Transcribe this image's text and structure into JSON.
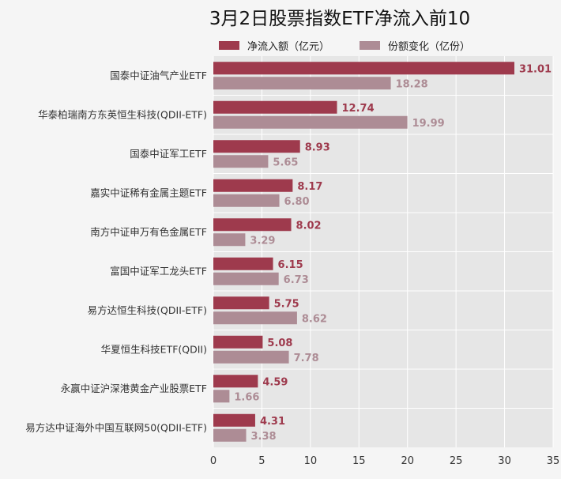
{
  "chart_data": {
    "type": "bar",
    "orientation": "horizontal",
    "title": "3月2日股票指数ETF净流入前10",
    "categories": [
      "国泰中证油气产业ETF",
      "华泰柏瑞南方东英恒生科技(QDII-ETF)",
      "国泰中证军工ETF",
      "嘉实中证稀有金属主题ETF",
      "南方中证申万有色金属ETF",
      "富国中证军工龙头ETF",
      "易方达恒生科技(QDII-ETF)",
      "华夏恒生科技ETF(QDII)",
      "永赢中证沪深港黄金产业股票ETF",
      "易方达中证海外中国互联网50(QDII-ETF)"
    ],
    "series": [
      {
        "name": "净流入额（亿元）",
        "color": "#9e3a4d",
        "values": [
          31.01,
          12.74,
          8.93,
          8.17,
          8.02,
          6.15,
          5.75,
          5.08,
          4.59,
          4.31
        ],
        "labels": [
          "31.01",
          "12.74",
          "8.93",
          "8.17",
          "8.02",
          "6.15",
          "5.75",
          "5.08",
          "4.59",
          "4.31"
        ]
      },
      {
        "name": "份额变化（亿份）",
        "color": "#ad8c95",
        "values": [
          18.28,
          19.99,
          5.65,
          6.8,
          3.29,
          6.73,
          8.62,
          7.78,
          1.66,
          3.38
        ],
        "labels": [
          "18.28",
          "19.99",
          "5.65",
          "6.80",
          "3.29",
          "6.73",
          "8.62",
          "7.78",
          "1.66",
          "3.38"
        ]
      }
    ],
    "xlim": [
      0,
      35
    ],
    "xticks": [
      0,
      5,
      10,
      15,
      20,
      25,
      30,
      35
    ],
    "grid": true,
    "legend": "top"
  }
}
